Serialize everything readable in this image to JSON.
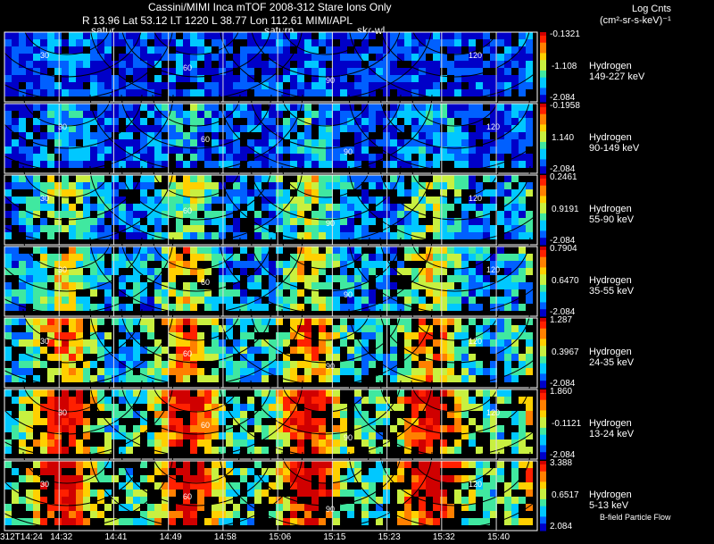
{
  "header": {
    "title": "Cassini/MIMI Inca mTOF  2008-312   Stare   Ions Only",
    "subtitle": "R        13.96 Lat 53.12 LT 1220 L          38.77 Lon          112.61  MIMI/APL",
    "markers": [
      "satur",
      "saturn",
      "skr-wl"
    ],
    "units_title": "Log Cnts",
    "units": "(cm²-sr-s-keV)⁻¹"
  },
  "footer": {
    "note": "B-field Particle Flow"
  },
  "chart_data": {
    "type": "heatmap",
    "title": "Cassini/MIMI Inca mTOF  2008-312   Stare   Ions Only",
    "x_tick_labels": [
      "312T14:24",
      "14:32",
      "14:41",
      "14:49",
      "14:58",
      "15:06",
      "15:15",
      "15:23",
      "15:32",
      "15:40"
    ],
    "grid": true,
    "contour_labels": [
      "30",
      "60",
      "90",
      "120"
    ],
    "colormap": [
      "#0000c8",
      "#0060ff",
      "#00c8ff",
      "#40e8a0",
      "#c8f040",
      "#ffd000",
      "#ff8000",
      "#ff2000",
      "#d00000"
    ],
    "series": [
      {
        "name": "Hydrogen",
        "energy": "149-227 keV",
        "colorbar": [
          "-0.1321",
          "-1.108",
          "-2.084"
        ],
        "intensity": 0.12
      },
      {
        "name": "Hydrogen",
        "energy": "90-149 keV",
        "colorbar": [
          "-0.1958",
          "1.140",
          "-2.084"
        ],
        "intensity": 0.2
      },
      {
        "name": "Hydrogen",
        "energy": "55-90 keV",
        "colorbar": [
          "0.2461",
          "0.9191",
          "-2.084"
        ],
        "intensity": 0.36
      },
      {
        "name": "Hydrogen",
        "energy": "35-55 keV",
        "colorbar": [
          "0.7904",
          "0.6470",
          "-2.084"
        ],
        "intensity": 0.42
      },
      {
        "name": "Hydrogen",
        "energy": "24-35 keV",
        "colorbar": [
          "1.287",
          "0.3967",
          "-2.084"
        ],
        "intensity": 0.55
      },
      {
        "name": "Hydrogen",
        "energy": "13-24 keV",
        "colorbar": [
          "1.860",
          "-0.1121",
          "-2.084"
        ],
        "intensity": 0.72
      },
      {
        "name": "Hydrogen",
        "energy": "5-13 keV",
        "colorbar": [
          "3.388",
          "0.6517",
          "2.084"
        ],
        "intensity": 0.75
      }
    ]
  }
}
